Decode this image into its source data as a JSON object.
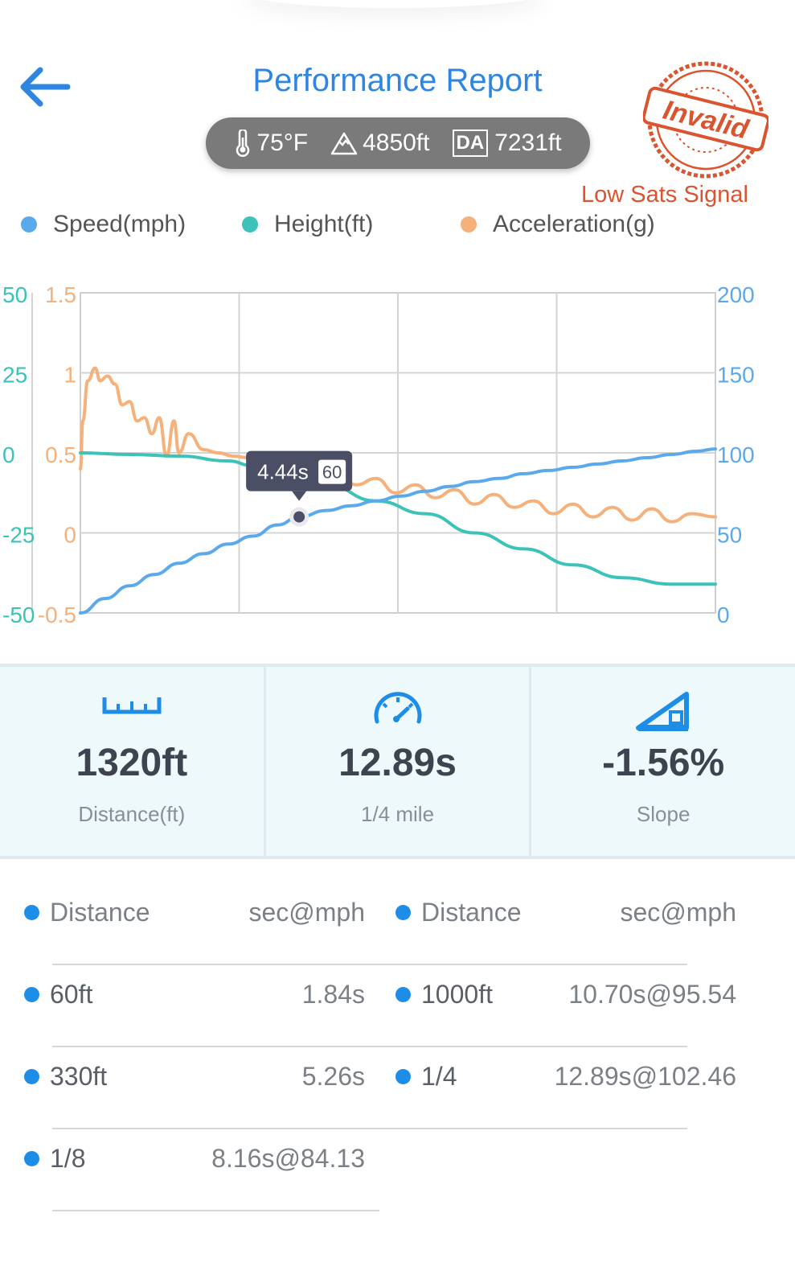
{
  "header": {
    "title": "Performance Report",
    "back_icon": "back-arrow-icon"
  },
  "conditions": {
    "temperature": "75°F",
    "elevation": "4850ft",
    "da_label": "DA",
    "density_altitude": "7231ft"
  },
  "warning": {
    "stamp_text": "Invalid",
    "message": "Low Sats Signal",
    "color": "#d9542f"
  },
  "legend": [
    {
      "label": "Speed(mph)",
      "color": "#5aa9ec"
    },
    {
      "label": "Height(ft)",
      "color": "#3cc2b8"
    },
    {
      "label": "Acceleration(g)",
      "color": "#f6b07a"
    }
  ],
  "chart_data": {
    "type": "line",
    "x_range": [
      0,
      12.89
    ],
    "grid": true,
    "legend_position": "top",
    "axes": {
      "left_outer": {
        "series": "Height(ft)",
        "ticks": [
          "50",
          "25",
          "0",
          "-25",
          "-50"
        ],
        "range": [
          -50,
          50
        ],
        "color": "#3cc2b8"
      },
      "left_inner": {
        "series": "Acceleration(g)",
        "ticks": [
          "1.5",
          "1",
          "0.5",
          "0",
          "-0.5"
        ],
        "range": [
          -0.5,
          1.5
        ],
        "color": "#f6b07a"
      },
      "right": {
        "series": "Speed(mph)",
        "ticks": [
          "200",
          "150",
          "100",
          "50",
          "0"
        ],
        "range": [
          0,
          200
        ],
        "color": "#5aa9ec"
      }
    },
    "series": [
      {
        "name": "Speed(mph)",
        "axis": "right",
        "color": "#5aa9ec",
        "x": [
          0,
          0.5,
          1,
          1.5,
          2,
          2.5,
          3,
          3.5,
          4,
          4.44,
          5,
          5.5,
          6,
          6.5,
          7,
          7.5,
          8,
          8.5,
          9,
          9.5,
          10,
          10.5,
          11,
          11.5,
          12,
          12.5,
          12.89
        ],
        "y": [
          0,
          9,
          17,
          24,
          31,
          37,
          43,
          48,
          55,
          60,
          64,
          67,
          70,
          73,
          76,
          79,
          82,
          84,
          87,
          89,
          91,
          93,
          95,
          97,
          99,
          101,
          102.46
        ]
      },
      {
        "name": "Height(ft)",
        "axis": "left_outer",
        "color": "#3cc2b8",
        "x": [
          0,
          1,
          2,
          3,
          3.5,
          4,
          5,
          6,
          7,
          8,
          9,
          10,
          11,
          12,
          12.89
        ],
        "y": [
          0,
          -0.5,
          -1,
          -2.5,
          -4,
          -6,
          -10,
          -15,
          -19,
          -25,
          -30,
          -35,
          -39,
          -41,
          -41
        ]
      },
      {
        "name": "Acceleration(g)",
        "axis": "left_inner",
        "color": "#f6b07a",
        "x": [
          0,
          0.05,
          0.15,
          0.3,
          0.4,
          0.55,
          0.7,
          0.85,
          1.0,
          1.15,
          1.3,
          1.45,
          1.6,
          1.75,
          1.9,
          2.0,
          2.2,
          2.5,
          2.8,
          3.1,
          3.4,
          3.7,
          4.0,
          4.3,
          4.6,
          4.9,
          5.2,
          5.6,
          6.0,
          6.4,
          6.8,
          7.2,
          7.6,
          8.0,
          8.4,
          8.8,
          9.2,
          9.6,
          10.0,
          10.4,
          10.8,
          11.2,
          11.6,
          12.0,
          12.4,
          12.89
        ],
        "y": [
          0.4,
          0.7,
          0.95,
          1.03,
          0.95,
          0.98,
          0.93,
          0.8,
          0.82,
          0.7,
          0.72,
          0.62,
          0.72,
          0.48,
          0.7,
          0.5,
          0.62,
          0.52,
          0.5,
          0.48,
          0.47,
          0.44,
          0.42,
          0.4,
          0.38,
          0.34,
          0.38,
          0.3,
          0.34,
          0.25,
          0.3,
          0.22,
          0.27,
          0.18,
          0.24,
          0.16,
          0.2,
          0.12,
          0.18,
          0.1,
          0.16,
          0.08,
          0.15,
          0.07,
          0.12,
          0.1
        ]
      }
    ],
    "tooltip": {
      "time": "4.44s",
      "value": "60",
      "x": 4.44,
      "y": 60
    }
  },
  "stats": [
    {
      "icon": "ruler-icon",
      "value": "1320ft",
      "label": "Distance(ft)"
    },
    {
      "icon": "speedometer-icon",
      "value": "12.89s",
      "label": "1/4 mile"
    },
    {
      "icon": "slope-icon",
      "value": "-1.56%",
      "label": "Slope"
    }
  ],
  "splits": {
    "headers": {
      "left_name": "Distance",
      "left_value": "sec@mph",
      "right_name": "Distance",
      "right_value": "sec@mph"
    },
    "rows": [
      {
        "left_name": "60ft",
        "left_value": "1.84s",
        "right_name": "1000ft",
        "right_value": "10.70s@95.54"
      },
      {
        "left_name": "330ft",
        "left_value": "5.26s",
        "right_name": "1/4",
        "right_value": "12.89s@102.46"
      },
      {
        "left_name": "1/8",
        "left_value": "8.16s@84.13"
      }
    ]
  }
}
